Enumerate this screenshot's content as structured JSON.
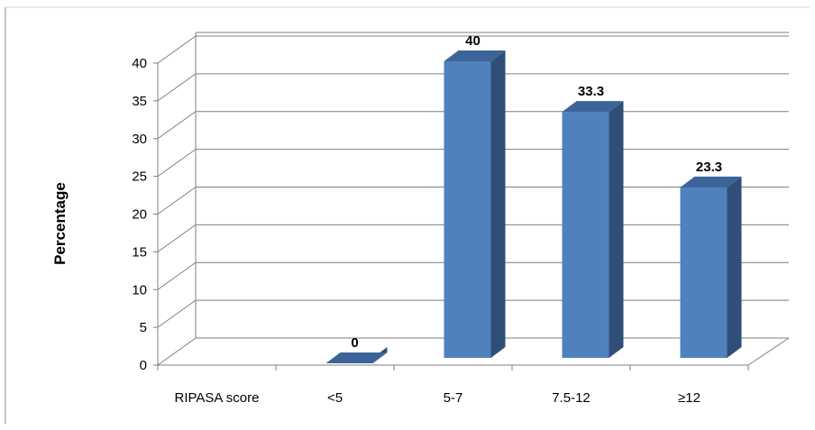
{
  "chart_data": {
    "type": "bar",
    "categories": [
      "RIPASA score",
      "<5",
      "5-7",
      "7.5-12",
      "≥12"
    ],
    "values": [
      null,
      0,
      40,
      33.3,
      23.3
    ],
    "data_labels": [
      "",
      "0",
      "40",
      "33.3",
      "23.3"
    ],
    "title": "",
    "xlabel": "",
    "ylabel": "Percentage",
    "ylim": [
      0,
      40
    ],
    "yticks": [
      "0",
      "5",
      "10",
      "15",
      "20",
      "25",
      "30",
      "35",
      "40"
    ],
    "grid": true,
    "legend": "none",
    "three_d": true,
    "colors": {
      "bar_front": "#4f81bd",
      "bar_side": "#2f4f78",
      "bar_top": "#3c6499",
      "grid": "#7f7f7f",
      "frame": "#888888"
    }
  }
}
